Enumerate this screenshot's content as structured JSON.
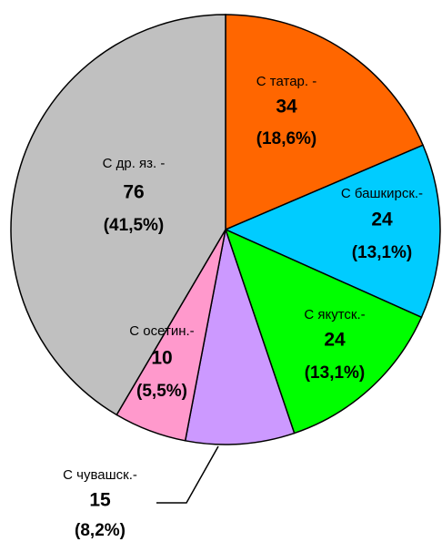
{
  "chart_data": {
    "type": "pie",
    "categories": [
      "С татар. -",
      "С башкирск.-",
      "С якутск.-",
      "С чувашск.-",
      "С осетин.-",
      "С др. яз. -"
    ],
    "values": [
      34,
      24,
      24,
      15,
      10,
      76
    ],
    "percent_labels": [
      "(18,6%)",
      "(13,1%)",
      "(13,1%)",
      "(8,2%)",
      "(5,5%)",
      "(41,5%)"
    ],
    "colors": [
      "#FF6600",
      "#00CCFF",
      "#00FF00",
      "#CC99FF",
      "#FF99CC",
      "#C0C0C0"
    ]
  }
}
